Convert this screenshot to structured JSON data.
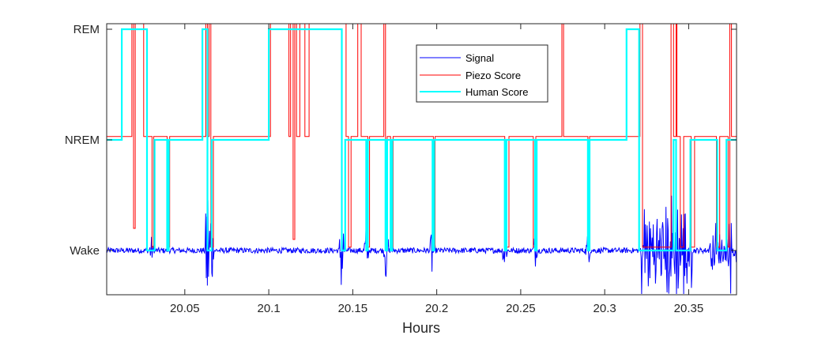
{
  "chart_data": {
    "type": "line",
    "title": "",
    "xlabel": "Hours",
    "ylabel": "",
    "xlim": [
      20.0035,
      20.3785
    ],
    "x_ticks": [
      20.05,
      20.1,
      20.15,
      20.2,
      20.25,
      20.3,
      20.35
    ],
    "x_tick_labels": [
      "20.05",
      "20.1",
      "20.15",
      "20.2",
      "20.25",
      "20.3",
      "20.35"
    ],
    "y_categories": [
      "Wake",
      "NREM",
      "REM"
    ],
    "y_ticks": [
      0,
      1,
      2
    ],
    "ylim": [
      -0.4,
      2.05
    ],
    "grid": false,
    "legend_position": "top-right",
    "series": [
      {
        "name": "Signal",
        "color": "#0000ff",
        "kind": "noise-trace",
        "baseline": 0,
        "points": [
          [
            20.0035,
            0
          ],
          [
            20.3785,
            0
          ]
        ]
      },
      {
        "name": "Piezo Score",
        "color": "#ff0000",
        "kind": "step",
        "segments": [
          [
            20.0035,
            1.03
          ],
          [
            20.016,
            1.03
          ],
          [
            20.0185,
            2.05
          ],
          [
            20.0195,
            0.2
          ],
          [
            20.0205,
            2.05
          ],
          [
            20.024,
            2.05
          ],
          [
            20.0255,
            1.03
          ],
          [
            20.029,
            1.03
          ],
          [
            20.0305,
            0.03
          ],
          [
            20.0315,
            1.03
          ],
          [
            20.038,
            1.03
          ],
          [
            20.0395,
            0.03
          ],
          [
            20.041,
            1.03
          ],
          [
            20.061,
            1.03
          ],
          [
            20.0625,
            2.05
          ],
          [
            20.0635,
            1.03
          ],
          [
            20.0645,
            2.05
          ],
          [
            20.0655,
            0.03
          ],
          [
            20.067,
            1.03
          ],
          [
            20.1,
            1.03
          ],
          [
            20.101,
            2.05
          ],
          [
            20.1105,
            2.05
          ],
          [
            20.112,
            1.03
          ],
          [
            20.113,
            2.05
          ],
          [
            20.1145,
            0.1
          ],
          [
            20.1155,
            2.05
          ],
          [
            20.1165,
            1.03
          ],
          [
            20.1185,
            2.05
          ],
          [
            20.12,
            2.05
          ],
          [
            20.1215,
            1.03
          ],
          [
            20.124,
            2.05
          ],
          [
            20.145,
            2.05
          ],
          [
            20.146,
            1.03
          ],
          [
            20.1475,
            0.03
          ],
          [
            20.149,
            1.03
          ],
          [
            20.1515,
            1.03
          ],
          [
            20.153,
            2.05
          ],
          [
            20.155,
            1.03
          ],
          [
            20.1575,
            1.03
          ],
          [
            20.159,
            0.03
          ],
          [
            20.16,
            1.03
          ],
          [
            20.167,
            1.03
          ],
          [
            20.1685,
            2.05
          ],
          [
            20.1695,
            0.03
          ],
          [
            20.1705,
            1.03
          ],
          [
            20.1725,
            0.03
          ],
          [
            20.174,
            1.03
          ],
          [
            20.197,
            1.03
          ],
          [
            20.198,
            0.03
          ],
          [
            20.199,
            1.03
          ],
          [
            20.2395,
            1.03
          ],
          [
            20.2405,
            0.03
          ],
          [
            20.243,
            1.03
          ],
          [
            20.2565,
            1.03
          ],
          [
            20.2575,
            0.03
          ],
          [
            20.259,
            1.03
          ],
          [
            20.2735,
            1.03
          ],
          [
            20.2745,
            2.05
          ],
          [
            20.2755,
            1.03
          ],
          [
            20.289,
            1.03
          ],
          [
            20.29,
            0.03
          ],
          [
            20.291,
            1.03
          ],
          [
            20.3195,
            1.03
          ],
          [
            20.321,
            2.05
          ],
          [
            20.3225,
            0.03
          ],
          [
            20.338,
            0.03
          ],
          [
            20.3395,
            2.05
          ],
          [
            20.341,
            1.03
          ],
          [
            20.3425,
            2.05
          ],
          [
            20.343,
            1.03
          ],
          [
            20.345,
            0.03
          ],
          [
            20.347,
            1.03
          ],
          [
            20.35,
            1.03
          ],
          [
            20.3515,
            0.03
          ],
          [
            20.3535,
            1.03
          ],
          [
            20.3655,
            1.03
          ],
          [
            20.3665,
            0.03
          ],
          [
            20.3685,
            1.03
          ],
          [
            20.3725,
            1.03
          ],
          [
            20.3735,
            0.03
          ],
          [
            20.3745,
            2.05
          ],
          [
            20.3755,
            1.03
          ],
          [
            20.3785,
            1.03
          ]
        ]
      },
      {
        "name": "Human Score",
        "color": "#00ffff",
        "kind": "step",
        "segments": [
          [
            20.0035,
            1
          ],
          [
            20.0125,
            1
          ],
          [
            20.0125,
            2
          ],
          [
            20.0275,
            2
          ],
          [
            20.0275,
            0
          ],
          [
            20.032,
            0
          ],
          [
            20.032,
            1
          ],
          [
            20.0395,
            1
          ],
          [
            20.0395,
            0
          ],
          [
            20.0405,
            0
          ],
          [
            20.0405,
            1
          ],
          [
            20.0605,
            1
          ],
          [
            20.0605,
            2
          ],
          [
            20.0635,
            2
          ],
          [
            20.0635,
            0
          ],
          [
            20.066,
            0
          ],
          [
            20.066,
            1
          ],
          [
            20.1,
            1
          ],
          [
            20.1,
            2
          ],
          [
            20.1435,
            2
          ],
          [
            20.1435,
            0
          ],
          [
            20.1455,
            0
          ],
          [
            20.1455,
            1
          ],
          [
            20.158,
            1
          ],
          [
            20.158,
            0
          ],
          [
            20.159,
            0
          ],
          [
            20.159,
            1
          ],
          [
            20.1695,
            1
          ],
          [
            20.1695,
            0
          ],
          [
            20.1705,
            0
          ],
          [
            20.1705,
            1
          ],
          [
            20.1725,
            1
          ],
          [
            20.1725,
            0
          ],
          [
            20.1735,
            0
          ],
          [
            20.1735,
            1
          ],
          [
            20.1975,
            1
          ],
          [
            20.1975,
            0
          ],
          [
            20.1985,
            0
          ],
          [
            20.1985,
            1
          ],
          [
            20.2405,
            1
          ],
          [
            20.2405,
            0
          ],
          [
            20.2415,
            0
          ],
          [
            20.2415,
            1
          ],
          [
            20.2585,
            1
          ],
          [
            20.2585,
            0
          ],
          [
            20.2595,
            0
          ],
          [
            20.2595,
            1
          ],
          [
            20.29,
            1
          ],
          [
            20.29,
            0
          ],
          [
            20.291,
            0
          ],
          [
            20.291,
            1
          ],
          [
            20.313,
            1
          ],
          [
            20.313,
            2
          ],
          [
            20.3205,
            2
          ],
          [
            20.3205,
            0
          ],
          [
            20.341,
            0
          ],
          [
            20.341,
            1
          ],
          [
            20.3425,
            1
          ],
          [
            20.3425,
            0
          ],
          [
            20.351,
            0
          ],
          [
            20.351,
            1
          ],
          [
            20.367,
            1
          ],
          [
            20.367,
            0
          ],
          [
            20.3725,
            0
          ],
          [
            20.3725,
            1
          ],
          [
            20.3785,
            1
          ]
        ]
      }
    ]
  }
}
